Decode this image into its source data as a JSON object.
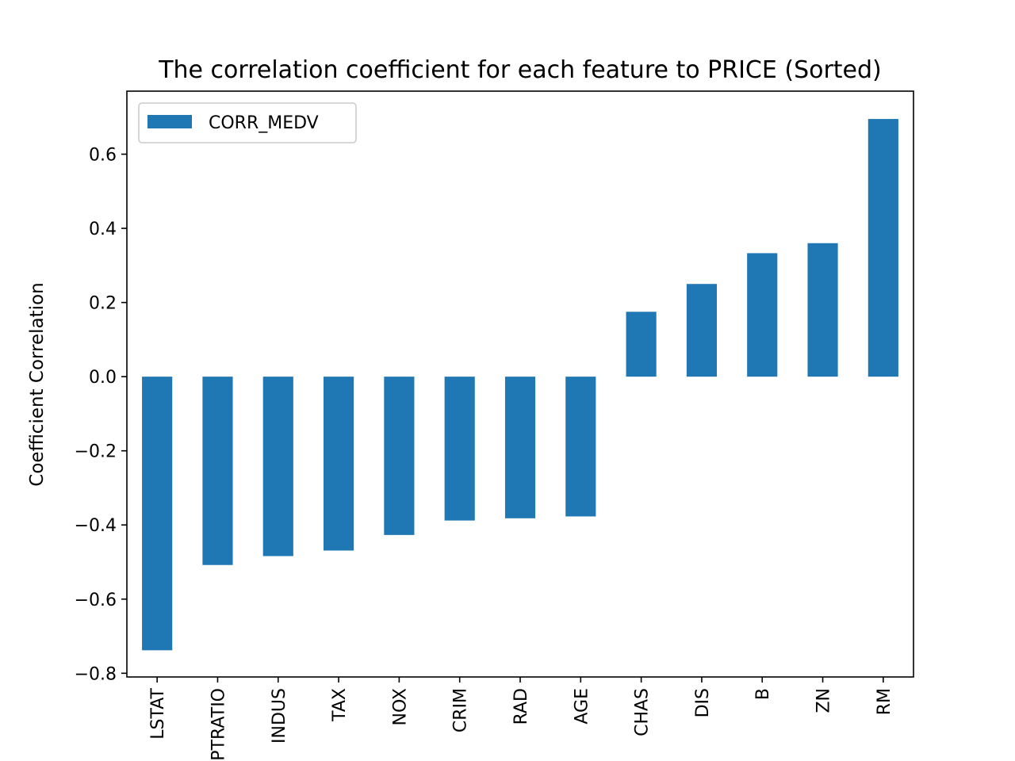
{
  "chart_data": {
    "type": "bar",
    "title": "The correlation coefficient for each feature to PRICE (Sorted)",
    "xlabel": "",
    "ylabel": "Coefficient Correlation",
    "categories": [
      "LSTAT",
      "PTRATIO",
      "INDUS",
      "TAX",
      "NOX",
      "CRIM",
      "RAD",
      "AGE",
      "CHAS",
      "DIS",
      "B",
      "ZN",
      "RM"
    ],
    "series": [
      {
        "name": "CORR_MEDV",
        "color": "#1f77b4",
        "values": [
          -0.738,
          -0.508,
          -0.484,
          -0.469,
          -0.427,
          -0.388,
          -0.382,
          -0.377,
          0.175,
          0.25,
          0.333,
          0.36,
          0.695
        ]
      }
    ],
    "ylim": [
      -0.81,
      0.77
    ],
    "yticks": [
      -0.8,
      -0.6,
      -0.4,
      -0.2,
      0.0,
      0.2,
      0.4,
      0.6
    ],
    "ytick_labels": [
      "−0.8",
      "−0.6",
      "−0.4",
      "−0.2",
      "0.0",
      "0.2",
      "0.4",
      "0.6"
    ],
    "grid": false,
    "legend_position": "top-left"
  }
}
